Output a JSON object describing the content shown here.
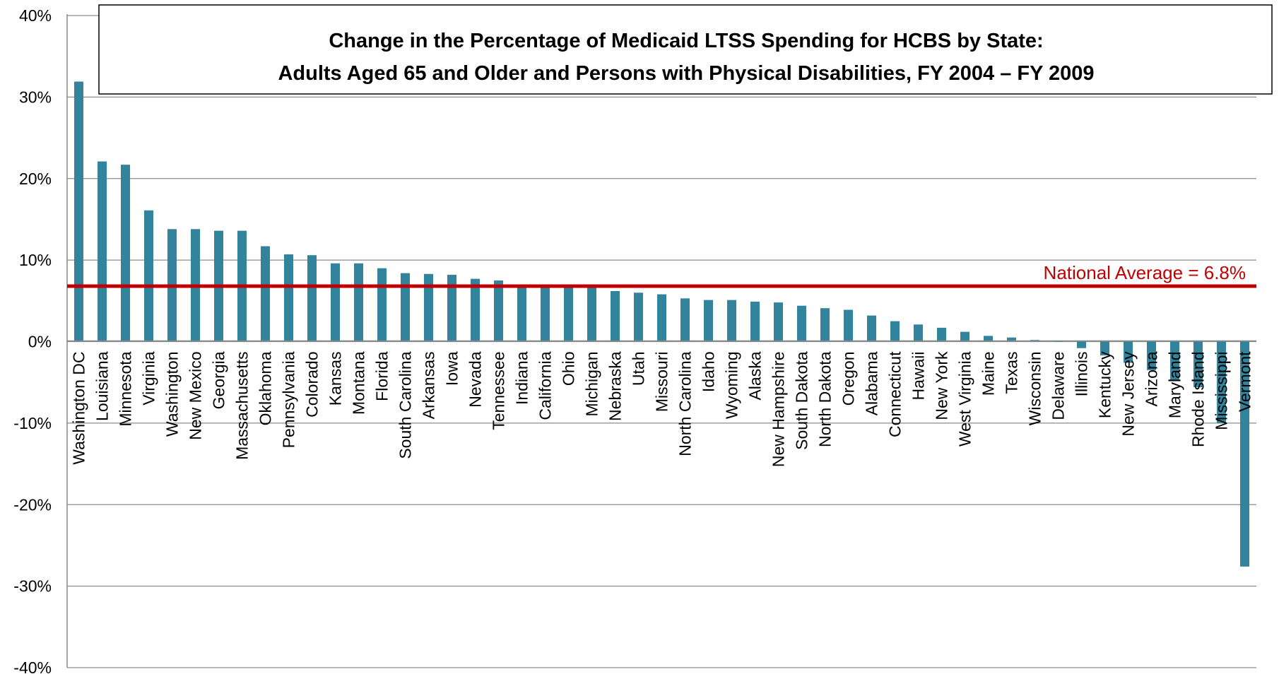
{
  "chart_data": {
    "type": "bar",
    "title_lines": [
      "Change in the Percentage of Medicaid LTSS Spending for HCBS by State:",
      "Adults Aged 65 and Older and Persons with Physical Disabilities, FY 2004 – FY 2009"
    ],
    "xlabel": "",
    "ylabel": "",
    "ylim": [
      -40,
      40
    ],
    "yticks": [
      40,
      30,
      20,
      10,
      0,
      -10,
      -20,
      -30,
      -40
    ],
    "ytick_labels": [
      "40%",
      "30%",
      "20%",
      "10%",
      "0%",
      "-10%",
      "-20%",
      "-30%",
      "-40%"
    ],
    "grid": true,
    "bar_color": "#31849b",
    "categories": [
      "Washington DC",
      "Louisiana",
      "Minnesota",
      "Virginia",
      "Washington",
      "New Mexico",
      "Georgia",
      "Massachusetts",
      "Oklahoma",
      "Pennsylvania",
      "Colorado",
      "Kansas",
      "Montana",
      "Florida",
      "South Carolina",
      "Arkansas",
      "Iowa",
      "Nevada",
      "Tennessee",
      "Indiana",
      "California",
      "Ohio",
      "Michigan",
      "Nebraska",
      "Utah",
      "Missouri",
      "North Carolina",
      "Idaho",
      "Wyoming",
      "Alaska",
      "New Hampshire",
      "South Dakota",
      "North Dakota",
      "Oregon",
      "Alabama",
      "Connecticut",
      "Hawaii",
      "New York",
      "West Virginia",
      "Maine",
      "Texas",
      "Wisconsin",
      "Delaware",
      "Illinois",
      "Kentucky",
      "New Jersey",
      "Arizona",
      "Maryland",
      "Rhode Island",
      "Mississippi",
      "Vermont"
    ],
    "values": [
      31.9,
      22.1,
      21.7,
      16.1,
      13.8,
      13.8,
      13.6,
      13.6,
      11.7,
      10.7,
      10.6,
      9.6,
      9.6,
      9.0,
      8.4,
      8.3,
      8.2,
      7.7,
      7.5,
      6.8,
      6.8,
      6.8,
      6.8,
      6.2,
      6.0,
      5.8,
      5.3,
      5.1,
      5.1,
      4.9,
      4.8,
      4.4,
      4.1,
      3.9,
      3.2,
      2.5,
      2.1,
      1.7,
      1.2,
      0.7,
      0.5,
      0.2,
      0.0,
      -0.8,
      -1.7,
      -2.6,
      -3.5,
      -4.8,
      -5.6,
      -10.0,
      -27.6
    ],
    "reference_line": {
      "label": "National Average = 6.8%",
      "value": 6.8,
      "color": "#c00000"
    }
  }
}
